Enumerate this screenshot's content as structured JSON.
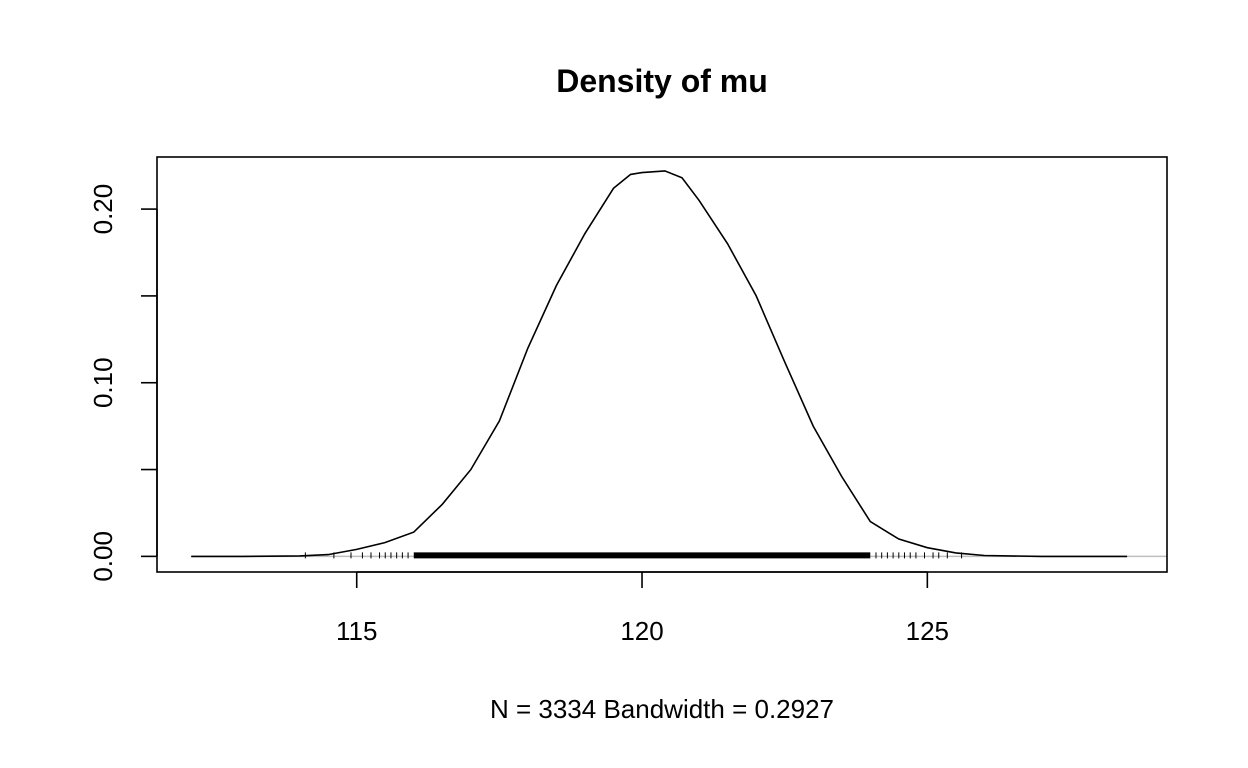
{
  "chart_data": {
    "type": "line",
    "title": "Density of mu",
    "xlabel": "N = 3334   Bandwidth = 0.2927",
    "ylabel": "",
    "xlim": [
      111.5,
      129.2
    ],
    "ylim": [
      -0.009,
      0.23
    ],
    "x_ticks": [
      115,
      120,
      125
    ],
    "x_tick_labels": [
      "115",
      "120",
      "125"
    ],
    "y_ticks": [
      0.0,
      0.05,
      0.1,
      0.15,
      0.2
    ],
    "y_tick_labels": [
      "0.00",
      "",
      "0.10",
      "",
      "0.20"
    ],
    "grid": false,
    "legend": "none",
    "zero_line_color": "#bebebe",
    "series": [
      {
        "x": [
          112.1,
          113.0,
          114.0,
          114.5,
          115.0,
          115.5,
          116.0,
          116.5,
          117.0,
          117.5,
          118.0,
          118.5,
          119.0,
          119.5,
          119.8,
          120.0,
          120.4,
          120.7,
          121.0,
          121.5,
          122.0,
          122.5,
          123.0,
          123.5,
          124.0,
          124.5,
          125.0,
          125.5,
          126.0,
          127.0,
          128.5
        ],
        "y": [
          0.0,
          0.0,
          0.0003,
          0.001,
          0.004,
          0.008,
          0.014,
          0.03,
          0.05,
          0.078,
          0.12,
          0.156,
          0.186,
          0.212,
          0.22,
          0.221,
          0.222,
          0.218,
          0.205,
          0.18,
          0.15,
          0.112,
          0.075,
          0.046,
          0.02,
          0.01,
          0.005,
          0.002,
          0.0005,
          0.0,
          0.0
        ]
      }
    ],
    "rug": {
      "dense_range": [
        116.0,
        124.0
      ],
      "sparse_points": [
        114.1,
        114.6,
        114.9,
        115.1,
        115.25,
        115.4,
        115.5,
        115.6,
        115.7,
        115.8,
        115.9,
        124.1,
        124.2,
        124.3,
        124.4,
        124.5,
        124.6,
        124.7,
        124.8,
        124.95,
        125.1,
        125.2,
        125.35,
        125.6
      ]
    }
  }
}
